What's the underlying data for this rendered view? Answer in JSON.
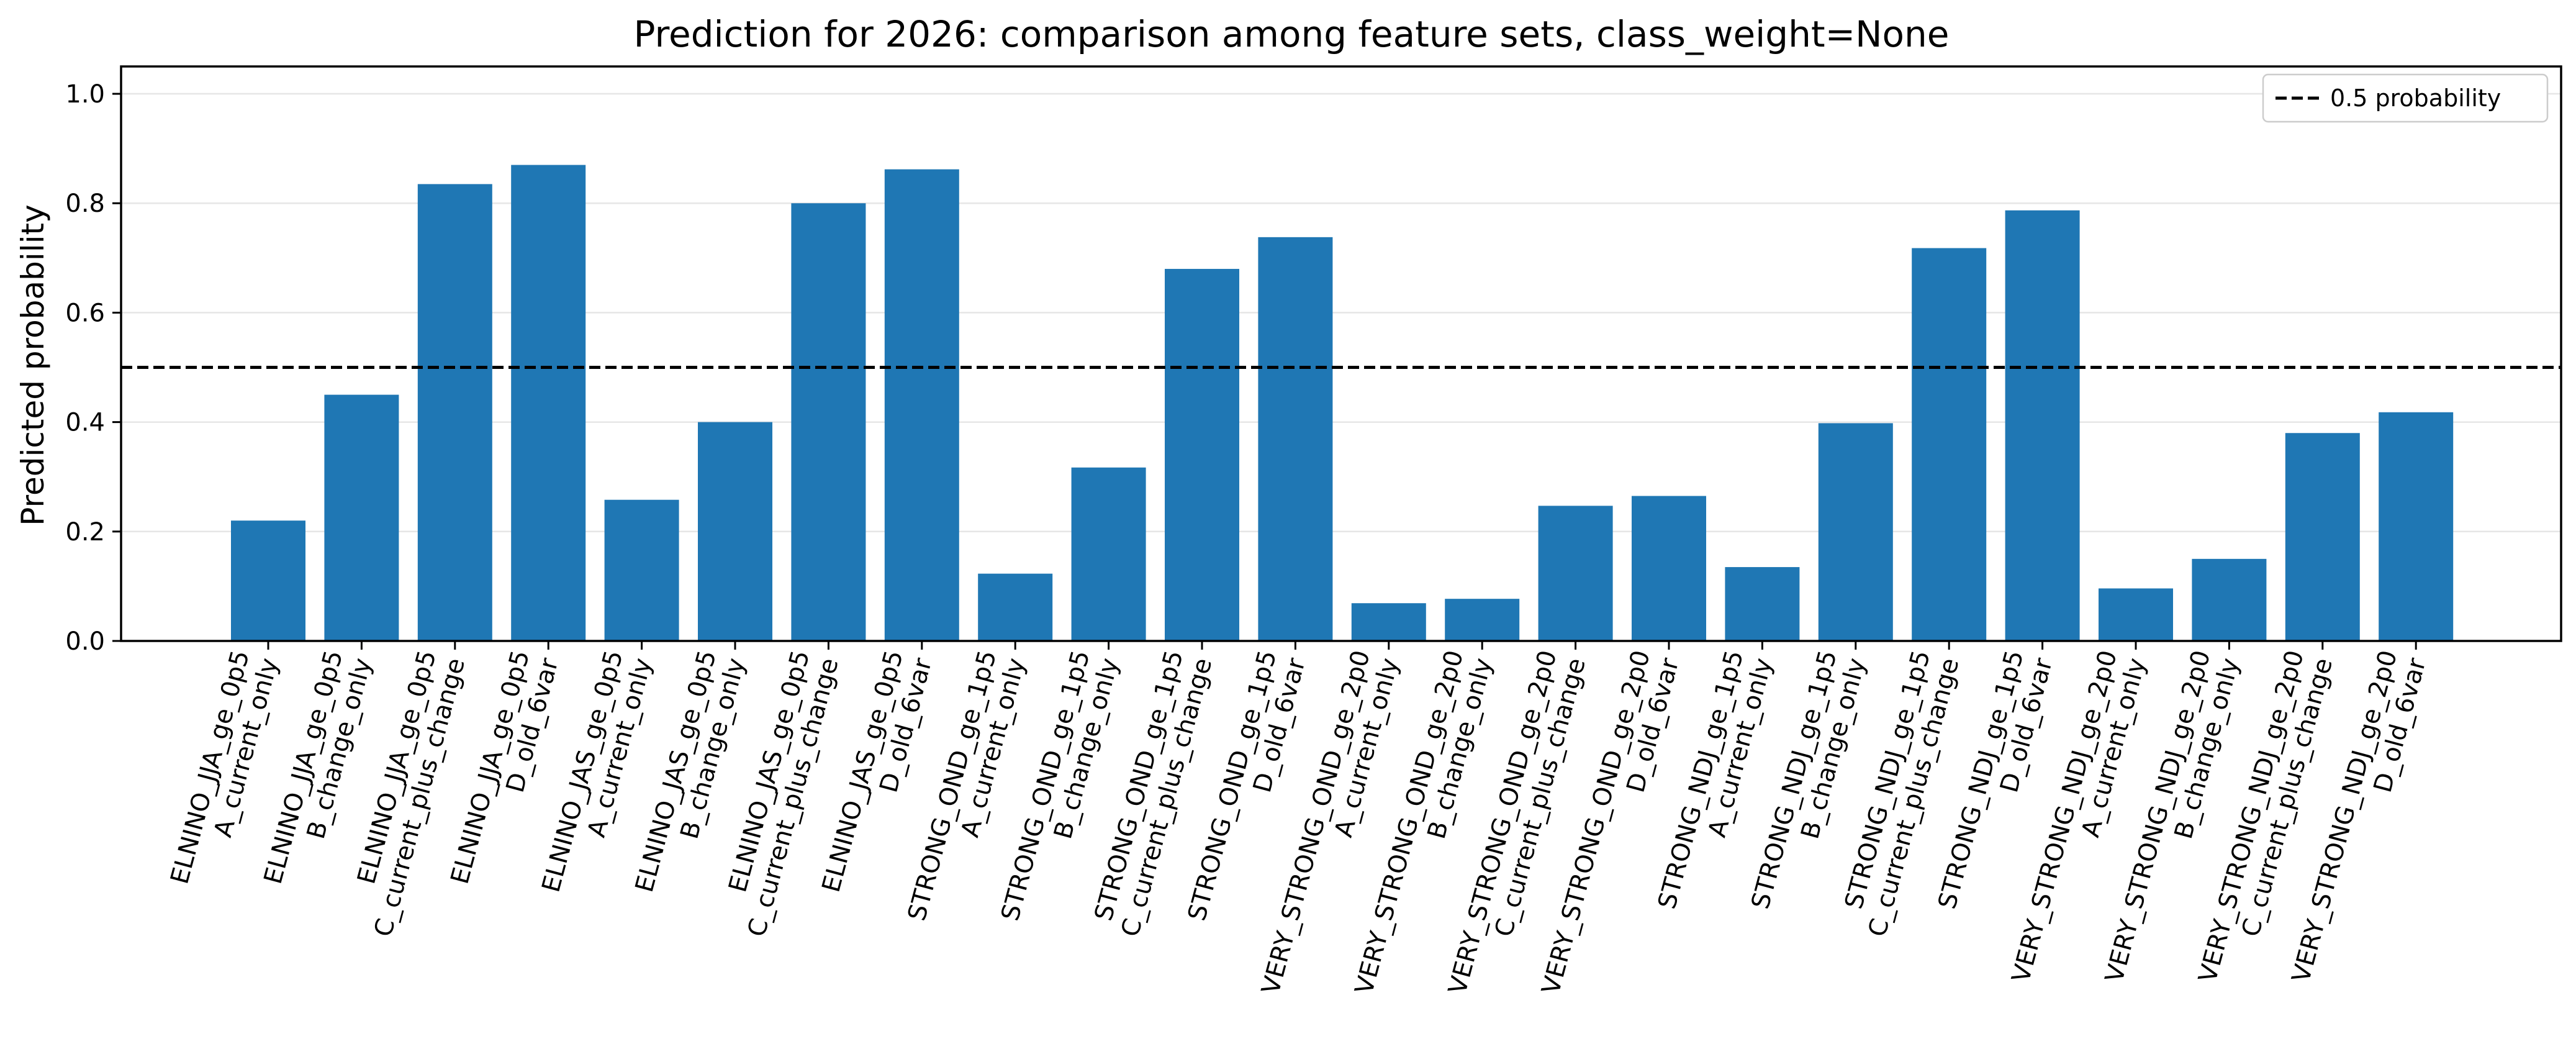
{
  "chart_data": {
    "type": "bar",
    "title": "Prediction for 2026: comparison among feature sets, class_weight=None",
    "xlabel": "",
    "ylabel": "Predicted probability",
    "ylim": [
      0,
      1.05
    ],
    "yticks": [
      0.0,
      0.2,
      0.4,
      0.6,
      0.8,
      1.0
    ],
    "grid": "horizontal",
    "bar_color": "#1f77b4",
    "categories": [
      [
        "ELNINO_JJA_ge_0p5",
        "A_current_only"
      ],
      [
        "ELNINO_JJA_ge_0p5",
        "B_change_only"
      ],
      [
        "ELNINO_JJA_ge_0p5",
        "C_current_plus_change"
      ],
      [
        "ELNINO_JJA_ge_0p5",
        "D_old_6var"
      ],
      [
        "ELNINO_JAS_ge_0p5",
        "A_current_only"
      ],
      [
        "ELNINO_JAS_ge_0p5",
        "B_change_only"
      ],
      [
        "ELNINO_JAS_ge_0p5",
        "C_current_plus_change"
      ],
      [
        "ELNINO_JAS_ge_0p5",
        "D_old_6var"
      ],
      [
        "STRONG_OND_ge_1p5",
        "A_current_only"
      ],
      [
        "STRONG_OND_ge_1p5",
        "B_change_only"
      ],
      [
        "STRONG_OND_ge_1p5",
        "C_current_plus_change"
      ],
      [
        "STRONG_OND_ge_1p5",
        "D_old_6var"
      ],
      [
        "VERY_STRONG_OND_ge_2p0",
        "A_current_only"
      ],
      [
        "VERY_STRONG_OND_ge_2p0",
        "B_change_only"
      ],
      [
        "VERY_STRONG_OND_ge_2p0",
        "C_current_plus_change"
      ],
      [
        "VERY_STRONG_OND_ge_2p0",
        "D_old_6var"
      ],
      [
        "STRONG_NDJ_ge_1p5",
        "A_current_only"
      ],
      [
        "STRONG_NDJ_ge_1p5",
        "B_change_only"
      ],
      [
        "STRONG_NDJ_ge_1p5",
        "C_current_plus_change"
      ],
      [
        "STRONG_NDJ_ge_1p5",
        "D_old_6var"
      ],
      [
        "VERY_STRONG_NDJ_ge_2p0",
        "A_current_only"
      ],
      [
        "VERY_STRONG_NDJ_ge_2p0",
        "B_change_only"
      ],
      [
        "VERY_STRONG_NDJ_ge_2p0",
        "C_current_plus_change"
      ],
      [
        "VERY_STRONG_NDJ_ge_2p0",
        "D_old_6var"
      ]
    ],
    "values": [
      0.22,
      0.45,
      0.835,
      0.87,
      0.258,
      0.4,
      0.8,
      0.862,
      0.123,
      0.317,
      0.68,
      0.738,
      0.069,
      0.077,
      0.247,
      0.265,
      0.135,
      0.398,
      0.718,
      0.787,
      0.096,
      0.15,
      0.38,
      0.418
    ],
    "reference_line": {
      "y": 0.5,
      "style": "dashed",
      "color": "#000000",
      "label": "0.5 probability"
    },
    "legend": {
      "position": "top-right",
      "entries": [
        "0.5 probability"
      ]
    }
  }
}
